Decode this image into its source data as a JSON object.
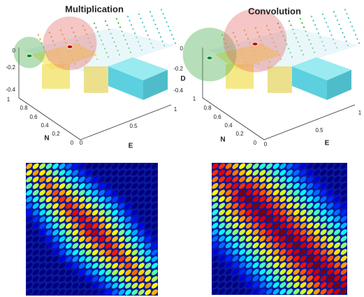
{
  "panels": [
    {
      "title": "Multiplication",
      "z_ticks": [
        "0",
        "-0.2",
        "-0.4"
      ],
      "n_label": "N",
      "n_ticks": [
        "1",
        "0.8",
        "0.6",
        "0.4",
        "0.2",
        "0"
      ],
      "e_label": "E",
      "e_ticks": [
        "0",
        "0.5",
        "1"
      ]
    },
    {
      "title": "Convolution",
      "d_label": "D",
      "z_ticks": [
        "0",
        "-0.2",
        "-0.4"
      ],
      "n_label": "N",
      "n_ticks": [
        "1",
        "0.8",
        "0.6",
        "0.4",
        "0.2",
        "0"
      ],
      "e_label": "E",
      "e_ticks": [
        "0",
        "0.5",
        "1"
      ]
    }
  ]
}
